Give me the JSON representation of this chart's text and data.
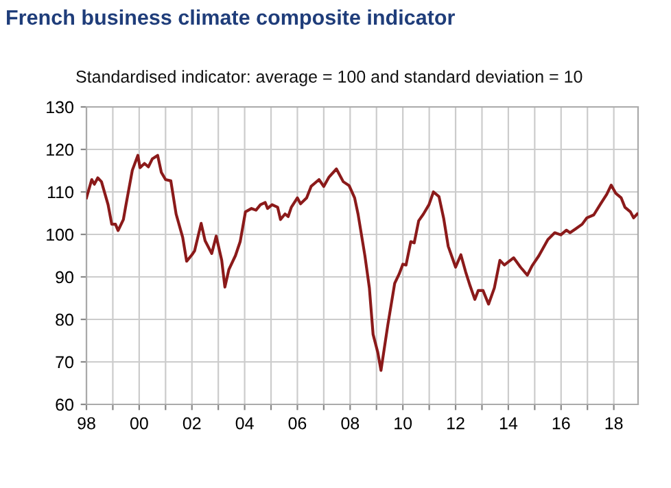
{
  "chart_data": {
    "type": "line",
    "title": "French business climate composite indicator",
    "subtitle": "Standardised indicator: average = 100 and standard deviation = 10",
    "series": [
      {
        "color": "#8b1a1a",
        "x": [
          1998.0,
          1998.2,
          1998.3,
          1998.43,
          1998.57,
          1998.82,
          1998.96,
          1999.1,
          1999.2,
          1999.4,
          1999.5,
          1999.74,
          1999.95,
          2000.03,
          2000.2,
          2000.35,
          2000.5,
          2000.7,
          2000.84,
          2001.0,
          2001.2,
          2001.4,
          2001.65,
          2001.8,
          2002.0,
          2002.1,
          2002.35,
          2002.5,
          2002.75,
          2002.92,
          2003.13,
          2003.25,
          2003.4,
          2003.65,
          2003.83,
          2004.03,
          2004.26,
          2004.43,
          2004.6,
          2004.78,
          2004.87,
          2005.04,
          2005.25,
          2005.36,
          2005.53,
          2005.65,
          2005.77,
          2006.0,
          2006.12,
          2006.35,
          2006.52,
          2006.82,
          2007.0,
          2007.2,
          2007.48,
          2007.74,
          2007.96,
          2008.17,
          2008.3,
          2008.56,
          2008.73,
          2008.87,
          2009.05,
          2009.17,
          2009.43,
          2009.69,
          2009.86,
          2010.0,
          2010.12,
          2010.3,
          2010.43,
          2010.6,
          2010.78,
          2010.99,
          2011.16,
          2011.37,
          2011.55,
          2011.72,
          2012.0,
          2012.2,
          2012.38,
          2012.55,
          2012.73,
          2012.86,
          2013.04,
          2013.25,
          2013.47,
          2013.68,
          2013.85,
          2014.2,
          2014.46,
          2014.72,
          2014.9,
          2015.16,
          2015.5,
          2015.76,
          2015.99,
          2016.2,
          2016.34,
          2016.55,
          2016.8,
          2016.98,
          2017.24,
          2017.5,
          2017.73,
          2017.9,
          2018.07,
          2018.28,
          2018.42,
          2018.63,
          2018.75,
          2018.89
        ],
        "values": [
          108.6,
          112.9,
          111.8,
          113.3,
          112.4,
          107.0,
          102.4,
          102.4,
          100.9,
          103.5,
          107.0,
          115.1,
          118.6,
          115.7,
          116.7,
          115.9,
          117.8,
          118.6,
          114.6,
          112.9,
          112.6,
          104.8,
          99.3,
          93.7,
          95.2,
          96.1,
          102.6,
          98.5,
          95.5,
          99.6,
          93.9,
          87.6,
          91.7,
          95.0,
          98.3,
          105.3,
          106.1,
          105.7,
          107.0,
          107.5,
          106.1,
          107.0,
          106.4,
          103.5,
          104.8,
          104.2,
          106.4,
          108.6,
          107.2,
          108.6,
          111.3,
          112.9,
          111.3,
          113.5,
          115.4,
          112.4,
          111.5,
          108.6,
          104.8,
          95.0,
          87.4,
          76.5,
          72.2,
          68.0,
          78.7,
          88.5,
          90.7,
          93.0,
          92.8,
          98.3,
          98.0,
          103.2,
          104.8,
          107.0,
          110.0,
          108.9,
          103.7,
          97.2,
          92.3,
          95.2,
          91.2,
          87.9,
          84.7,
          86.8,
          86.8,
          83.6,
          87.4,
          93.9,
          92.8,
          94.5,
          92.3,
          90.4,
          92.6,
          95.0,
          98.8,
          100.4,
          99.9,
          101.0,
          100.4,
          101.3,
          102.4,
          103.9,
          104.6,
          107.2,
          109.4,
          111.6,
          109.7,
          108.6,
          106.4,
          105.3,
          103.9,
          104.8
        ]
      }
    ],
    "xlim": [
      1998,
      2018.92
    ],
    "xticks": [
      {
        "value": 1998,
        "label": "98"
      },
      {
        "value": 1999,
        "label": null
      },
      {
        "value": 2000,
        "label": "00"
      },
      {
        "value": 2001,
        "label": null
      },
      {
        "value": 2002,
        "label": "02"
      },
      {
        "value": 2003,
        "label": null
      },
      {
        "value": 2004,
        "label": "04"
      },
      {
        "value": 2005,
        "label": null
      },
      {
        "value": 2006,
        "label": "06"
      },
      {
        "value": 2007,
        "label": null
      },
      {
        "value": 2008,
        "label": "08"
      },
      {
        "value": 2009,
        "label": null
      },
      {
        "value": 2010,
        "label": "10"
      },
      {
        "value": 2011,
        "label": null
      },
      {
        "value": 2012,
        "label": "12"
      },
      {
        "value": 2013,
        "label": null
      },
      {
        "value": 2014,
        "label": "14"
      },
      {
        "value": 2015,
        "label": null
      },
      {
        "value": 2016,
        "label": "16"
      },
      {
        "value": 2017,
        "label": null
      },
      {
        "value": 2018,
        "label": "18"
      }
    ],
    "ylim": [
      60,
      130
    ],
    "yticks": [
      60,
      70,
      80,
      90,
      100,
      110,
      120,
      130
    ],
    "grid": true,
    "legend": false,
    "marker": "none",
    "line_style": "solid"
  }
}
